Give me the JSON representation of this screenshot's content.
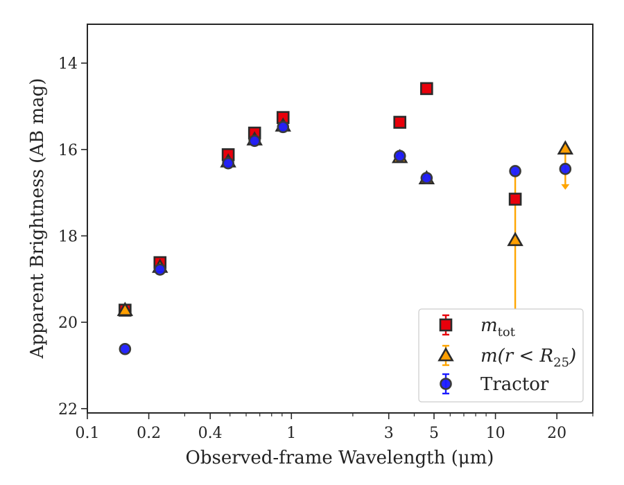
{
  "chart_data": {
    "type": "scatter",
    "xlabel": "Observed-frame Wavelength (μm)",
    "ylabel": "Apparent Brightness (AB mag)",
    "xscale": "log",
    "xlim": [
      0.1,
      30
    ],
    "ylim": [
      22.1,
      13.1
    ],
    "y_inverted": true,
    "grid": false,
    "legend_position": "lower-right",
    "x_ticks": [
      {
        "value": 0.1,
        "label": "0.1"
      },
      {
        "value": 0.2,
        "label": "0.2"
      },
      {
        "value": 0.4,
        "label": "0.4"
      },
      {
        "value": 1,
        "label": "1"
      },
      {
        "value": 3,
        "label": "3"
      },
      {
        "value": 5,
        "label": "5"
      },
      {
        "value": 10,
        "label": "10"
      },
      {
        "value": 20,
        "label": "20"
      }
    ],
    "y_ticks": [
      {
        "value": 14,
        "label": "14"
      },
      {
        "value": 16,
        "label": "16"
      },
      {
        "value": 18,
        "label": "18"
      },
      {
        "value": 20,
        "label": "20"
      },
      {
        "value": 22,
        "label": "22"
      }
    ],
    "series": [
      {
        "name": "m_tot",
        "legend_main": "m",
        "legend_sub": "tot",
        "marker": "square",
        "fill": "#e8000b",
        "errcolor": "#e8000b",
        "points": [
          {
            "x": 0.153,
            "y": 19.72
          },
          {
            "x": 0.227,
            "y": 18.62
          },
          {
            "x": 0.49,
            "y": 16.12
          },
          {
            "x": 0.66,
            "y": 15.62
          },
          {
            "x": 0.91,
            "y": 15.26
          },
          {
            "x": 3.4,
            "y": 15.37
          },
          {
            "x": 4.6,
            "y": 14.59
          },
          {
            "x": 12.5,
            "y": 17.15
          }
        ]
      },
      {
        "name": "m(r < R25)",
        "legend_main": "m(r < R",
        "legend_sub": "25",
        "legend_tail": ")",
        "marker": "triangle",
        "fill": "#ff9f00",
        "errcolor": "#ffa500",
        "points": [
          {
            "x": 0.153,
            "y": 19.72
          },
          {
            "x": 0.227,
            "y": 18.72
          },
          {
            "x": 0.49,
            "y": 16.28
          },
          {
            "x": 0.66,
            "y": 15.77
          },
          {
            "x": 0.91,
            "y": 15.45
          },
          {
            "x": 3.4,
            "y": 16.18
          },
          {
            "x": 4.6,
            "y": 16.67
          },
          {
            "x": 12.5,
            "y": 18.1,
            "yerr_low": 1.6,
            "yerr_high": 1.6
          },
          {
            "x": 22,
            "y": 15.98,
            "upper_limit_to": 16.9
          }
        ]
      },
      {
        "name": "Tractor",
        "legend_main": "Tractor",
        "marker": "circle",
        "fill": "#1a1aff",
        "errcolor": "#1a1aff",
        "points": [
          {
            "x": 0.153,
            "y": 20.62
          },
          {
            "x": 0.227,
            "y": 18.78
          },
          {
            "x": 0.49,
            "y": 16.32
          },
          {
            "x": 0.66,
            "y": 15.8
          },
          {
            "x": 0.91,
            "y": 15.48
          },
          {
            "x": 3.4,
            "y": 16.15
          },
          {
            "x": 4.6,
            "y": 16.66
          },
          {
            "x": 12.5,
            "y": 16.5
          },
          {
            "x": 22,
            "y": 16.45
          }
        ]
      }
    ]
  }
}
